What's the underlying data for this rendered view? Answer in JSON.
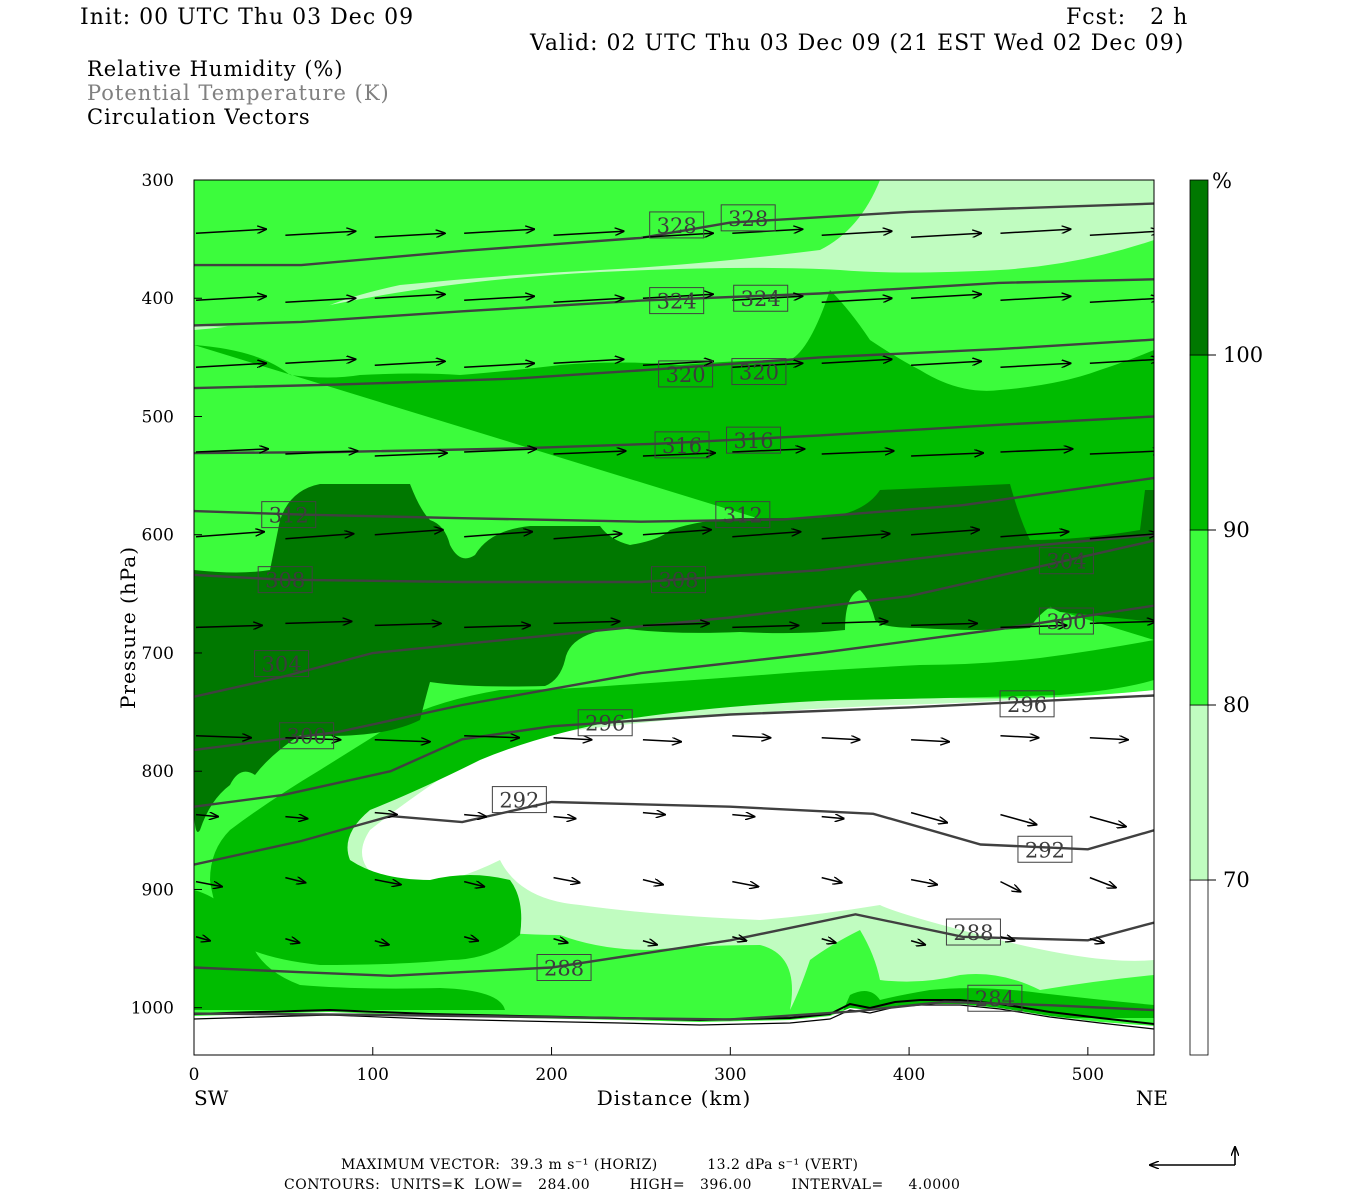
{
  "header": {
    "init": "Init: 00 UTC Thu 03 Dec 09",
    "fcst": "Fcst:   2 h",
    "valid": "Valid: 02 UTC Thu 03 Dec 09 (21 EST Wed 02 Dec 09)"
  },
  "legend_lines": [
    {
      "text": "Relative Humidity (%)",
      "color": "#000000"
    },
    {
      "text": "Potential Temperature (K)",
      "color": "#808080"
    },
    {
      "text": "Circulation Vectors",
      "color": "#000000"
    }
  ],
  "chart_data": {
    "type": "heatmap",
    "xlabel": "Distance (km)",
    "ylabel": "Pressure (hPa)",
    "x_end_labels": {
      "left": "SW",
      "right": "NE"
    },
    "xlim": [
      0,
      537
    ],
    "ylim": [
      1040,
      300
    ],
    "xticks": [
      0,
      100,
      200,
      300,
      400,
      500
    ],
    "yticks": [
      300,
      400,
      500,
      600,
      700,
      800,
      900,
      1000
    ],
    "colorbar": {
      "unit": "%",
      "levels": [
        70,
        80,
        90,
        100
      ],
      "colors": [
        "#ffffff",
        "#c0fcc0",
        "#3cfc3c",
        "#00bc00",
        "#007800"
      ]
    },
    "theta_contours": [
      {
        "value": 328,
        "points": [
          [
            0,
            372
          ],
          [
            60,
            372
          ],
          [
            150,
            360
          ],
          [
            250,
            349
          ],
          [
            300,
            336
          ],
          [
            400,
            327
          ],
          [
            537,
            320
          ]
        ],
        "labels": [
          [
            270,
            338
          ],
          [
            310,
            332
          ]
        ]
      },
      {
        "value": 324,
        "points": [
          [
            0,
            423
          ],
          [
            60,
            420
          ],
          [
            150,
            411
          ],
          [
            250,
            402
          ],
          [
            350,
            396
          ],
          [
            450,
            387
          ],
          [
            537,
            384
          ]
        ],
        "labels": [
          [
            270,
            402
          ],
          [
            317,
            400
          ]
        ]
      },
      {
        "value": 320,
        "points": [
          [
            0,
            476
          ],
          [
            80,
            473
          ],
          [
            180,
            468
          ],
          [
            260,
            460
          ],
          [
            350,
            450
          ],
          [
            450,
            443
          ],
          [
            537,
            435
          ]
        ],
        "labels": [
          [
            275,
            464
          ],
          [
            316,
            462
          ]
        ]
      },
      {
        "value": 316,
        "points": [
          [
            0,
            531
          ],
          [
            80,
            530
          ],
          [
            180,
            527
          ],
          [
            260,
            523
          ],
          [
            350,
            516
          ],
          [
            450,
            507
          ],
          [
            537,
            500
          ]
        ],
        "labels": [
          [
            273,
            524
          ],
          [
            313,
            520
          ]
        ]
      },
      {
        "value": 312,
        "points": [
          [
            0,
            580
          ],
          [
            60,
            583
          ],
          [
            150,
            586
          ],
          [
            250,
            589
          ],
          [
            330,
            587
          ],
          [
            430,
            575
          ],
          [
            537,
            552
          ]
        ],
        "labels": [
          [
            53,
            583
          ],
          [
            307,
            583
          ]
        ]
      },
      {
        "value": 308,
        "points": [
          [
            0,
            634
          ],
          [
            50,
            638
          ],
          [
            150,
            640
          ],
          [
            250,
            640
          ],
          [
            350,
            630
          ],
          [
            450,
            612
          ],
          [
            537,
            600
          ]
        ],
        "labels": [
          [
            51,
            638
          ],
          [
            271,
            638
          ]
        ]
      },
      {
        "value": 304,
        "points": [
          [
            0,
            737
          ],
          [
            50,
            720
          ],
          [
            100,
            700
          ],
          [
            200,
            685
          ],
          [
            300,
            670
          ],
          [
            400,
            652
          ],
          [
            537,
            605
          ]
        ],
        "labels": [
          [
            49,
            709
          ],
          [
            488,
            622
          ]
        ]
      },
      {
        "value": 300,
        "points": [
          [
            0,
            782
          ],
          [
            80,
            767
          ],
          [
            150,
            744
          ],
          [
            250,
            717
          ],
          [
            350,
            700
          ],
          [
            450,
            680
          ],
          [
            537,
            660
          ]
        ],
        "labels": [
          [
            63,
            770
          ],
          [
            488,
            673
          ]
        ]
      },
      {
        "value": 296,
        "points": [
          [
            0,
            830
          ],
          [
            50,
            820
          ],
          [
            110,
            800
          ],
          [
            150,
            773
          ],
          [
            200,
            762
          ],
          [
            300,
            752
          ],
          [
            400,
            746
          ],
          [
            537,
            736
          ]
        ],
        "labels": [
          [
            230,
            759
          ],
          [
            466,
            743
          ]
        ]
      },
      {
        "value": 292,
        "points": [
          [
            0,
            879
          ],
          [
            60,
            859
          ],
          [
            110,
            838
          ],
          [
            150,
            843
          ],
          [
            200,
            826
          ],
          [
            300,
            830
          ],
          [
            380,
            836
          ],
          [
            440,
            862
          ],
          [
            500,
            866
          ],
          [
            537,
            850
          ]
        ],
        "labels": [
          [
            182,
            824
          ],
          [
            476,
            866
          ]
        ]
      },
      {
        "value": 288,
        "points": [
          [
            0,
            966
          ],
          [
            60,
            970
          ],
          [
            110,
            973
          ],
          [
            200,
            966
          ],
          [
            300,
            943
          ],
          [
            370,
            921
          ],
          [
            430,
            940
          ],
          [
            500,
            943
          ],
          [
            537,
            928
          ]
        ],
        "labels": [
          [
            207,
            966
          ],
          [
            436,
            936
          ]
        ]
      },
      {
        "value": 284,
        "points": [
          [
            0,
            1005
          ],
          [
            100,
            1006
          ],
          [
            200,
            1008
          ],
          [
            300,
            1010
          ],
          [
            370,
            1003
          ],
          [
            420,
            995
          ],
          [
            480,
            998
          ],
          [
            537,
            1002
          ]
        ],
        "labels": [
          [
            448,
            992
          ]
        ]
      }
    ],
    "max_vector": "MAXIMUM VECTOR:  39.3 m s⁻¹ (HORIZ)          13.2 dPa s⁻¹ (VERT)",
    "contours_info": "CONTOURS:  UNITS=K  LOW=   284.00        HIGH=   396.00        INTERVAL=     4.0000"
  }
}
